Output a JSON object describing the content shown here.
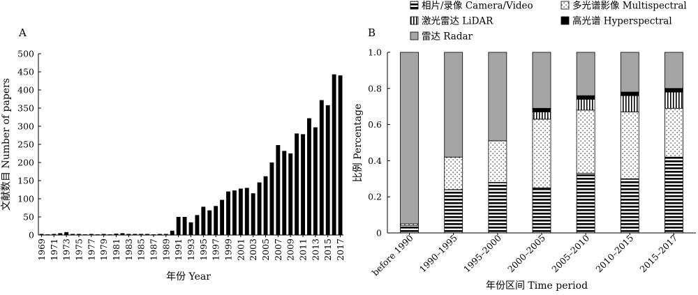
{
  "chart_data": [
    {
      "panel_label": "A",
      "type": "bar",
      "xlabel": "年份 Year",
      "ylabel": "文献数目 Number of papers",
      "ylim": [
        0,
        500
      ],
      "yticks": [
        0,
        50,
        100,
        150,
        200,
        250,
        300,
        350,
        400,
        450,
        500
      ],
      "tick_labels": [
        "1969",
        "1971",
        "1973",
        "1975",
        "1977",
        "1979",
        "1981",
        "1983",
        "1985",
        "1987",
        "1989",
        "1991",
        "1993",
        "1995",
        "1997",
        "1999",
        "2001",
        "2003",
        "2005",
        "2007",
        "2009",
        "2011",
        "2013",
        "2015",
        "2017"
      ],
      "categories": [
        "1969",
        "1970",
        "1971",
        "1972",
        "1973",
        "1974",
        "1975",
        "1976",
        "1977",
        "1978",
        "1979",
        "1980",
        "1981",
        "1982",
        "1983",
        "1984",
        "1985",
        "1986",
        "1987",
        "1988",
        "1989",
        "1990",
        "1991",
        "1992",
        "1993",
        "1994",
        "1995",
        "1996",
        "1997",
        "1998",
        "1999",
        "2000",
        "2001",
        "2002",
        "2003",
        "2004",
        "2005",
        "2006",
        "2007",
        "2008",
        "2009",
        "2010",
        "2011",
        "2012",
        "2013",
        "2014",
        "2015",
        "2016",
        "2017"
      ],
      "values": [
        3,
        2,
        3,
        5,
        8,
        3,
        3,
        2,
        3,
        2,
        3,
        2,
        4,
        5,
        3,
        3,
        3,
        3,
        2,
        3,
        3,
        12,
        50,
        50,
        35,
        55,
        78,
        68,
        80,
        97,
        120,
        123,
        128,
        130,
        115,
        145,
        162,
        200,
        248,
        232,
        225,
        280,
        278,
        322,
        297,
        372,
        358,
        443,
        440
      ]
    },
    {
      "panel_label": "B",
      "type": "bar",
      "stacked": true,
      "xlabel": "年份区间 Time period",
      "ylabel": "比例 Percentage",
      "ylim": [
        0,
        1.0
      ],
      "yticks": [
        "0",
        "0.2",
        "0.4",
        "0.6",
        "0.8",
        "1.0"
      ],
      "legend_position": "top",
      "categories": [
        "before 1990",
        "1990–1995",
        "1995–2000",
        "2000–2005",
        "2005–2010",
        "2010–2015",
        "2015–2017"
      ],
      "series": [
        {
          "name": "相片/录像 Camera/Video",
          "pattern": "horizontal-stripes",
          "values": [
            0.04,
            0.24,
            0.28,
            0.25,
            0.33,
            0.3,
            0.42
          ]
        },
        {
          "name": "多光谱影像 Multispectral",
          "pattern": "dots",
          "values": [
            0.01,
            0.18,
            0.23,
            0.38,
            0.35,
            0.37,
            0.27
          ]
        },
        {
          "name": "激光雷达 LiDAR",
          "pattern": "vertical-stripes",
          "values": [
            0.0,
            0.0,
            0.0,
            0.04,
            0.06,
            0.09,
            0.09
          ]
        },
        {
          "name": "高光谱 Hyperspectral",
          "pattern": "solid-black",
          "values": [
            0.0,
            0.0,
            0.0,
            0.02,
            0.02,
            0.02,
            0.02
          ]
        },
        {
          "name": "雷达 Radar",
          "pattern": "solid-gray",
          "color": "#a5a5a5",
          "values": [
            0.95,
            0.58,
            0.49,
            0.31,
            0.24,
            0.22,
            0.2
          ]
        }
      ]
    }
  ]
}
